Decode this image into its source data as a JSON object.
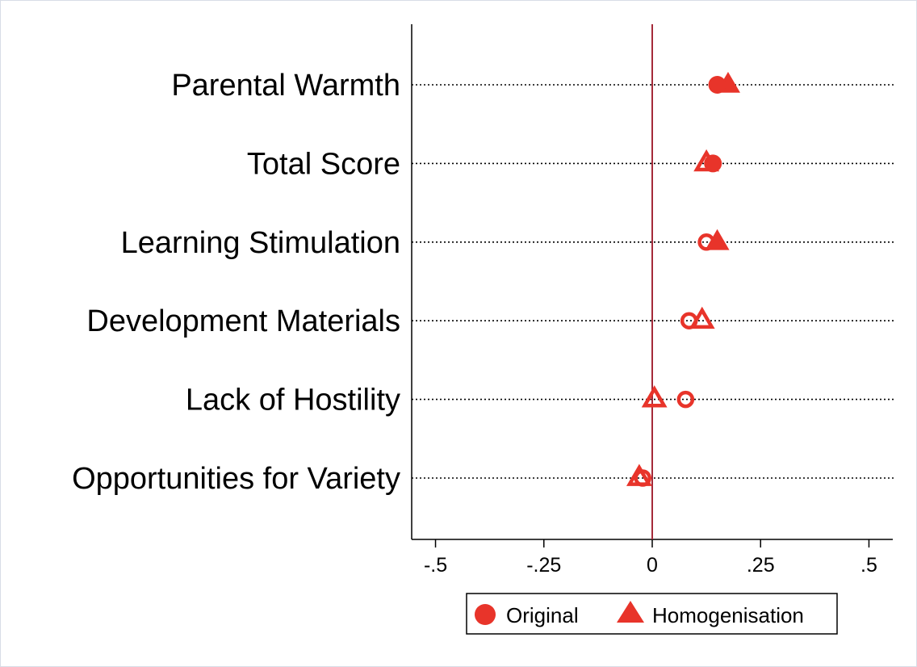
{
  "chart_data": {
    "type": "scatter",
    "orientation": "horizontal-dot-plot",
    "categories": [
      "Parental Warmth",
      "Total Score",
      "Learning Stimulation",
      "Development Materials",
      "Lack of Hostility",
      "Opportunities for Variety"
    ],
    "series": [
      {
        "name": "Original",
        "marker": "circle",
        "values": [
          0.15,
          0.14,
          0.125,
          0.085,
          0.077,
          -0.022
        ],
        "filled": [
          true,
          true,
          false,
          false,
          false,
          false
        ]
      },
      {
        "name": "Homogenisation",
        "marker": "triangle",
        "values": [
          0.175,
          0.125,
          0.15,
          0.115,
          0.005,
          -0.03
        ],
        "filled": [
          true,
          false,
          true,
          false,
          false,
          false
        ]
      }
    ],
    "xlim": [
      -0.555,
      0.555
    ],
    "xticks": [
      -0.5,
      -0.25,
      0,
      0.25,
      0.5
    ],
    "xtick_labels": [
      "-.5",
      "-.25",
      "0",
      ".25",
      ".5"
    ],
    "reference_line": 0,
    "grid": "dotted horizontal lines per category",
    "legend_position": "bottom-center",
    "title": "",
    "xlabel": "",
    "ylabel": "",
    "colors": {
      "marker": "#e8342a",
      "reference_line": "#a52a3a",
      "text": "#000000",
      "axis": "#000000"
    }
  }
}
